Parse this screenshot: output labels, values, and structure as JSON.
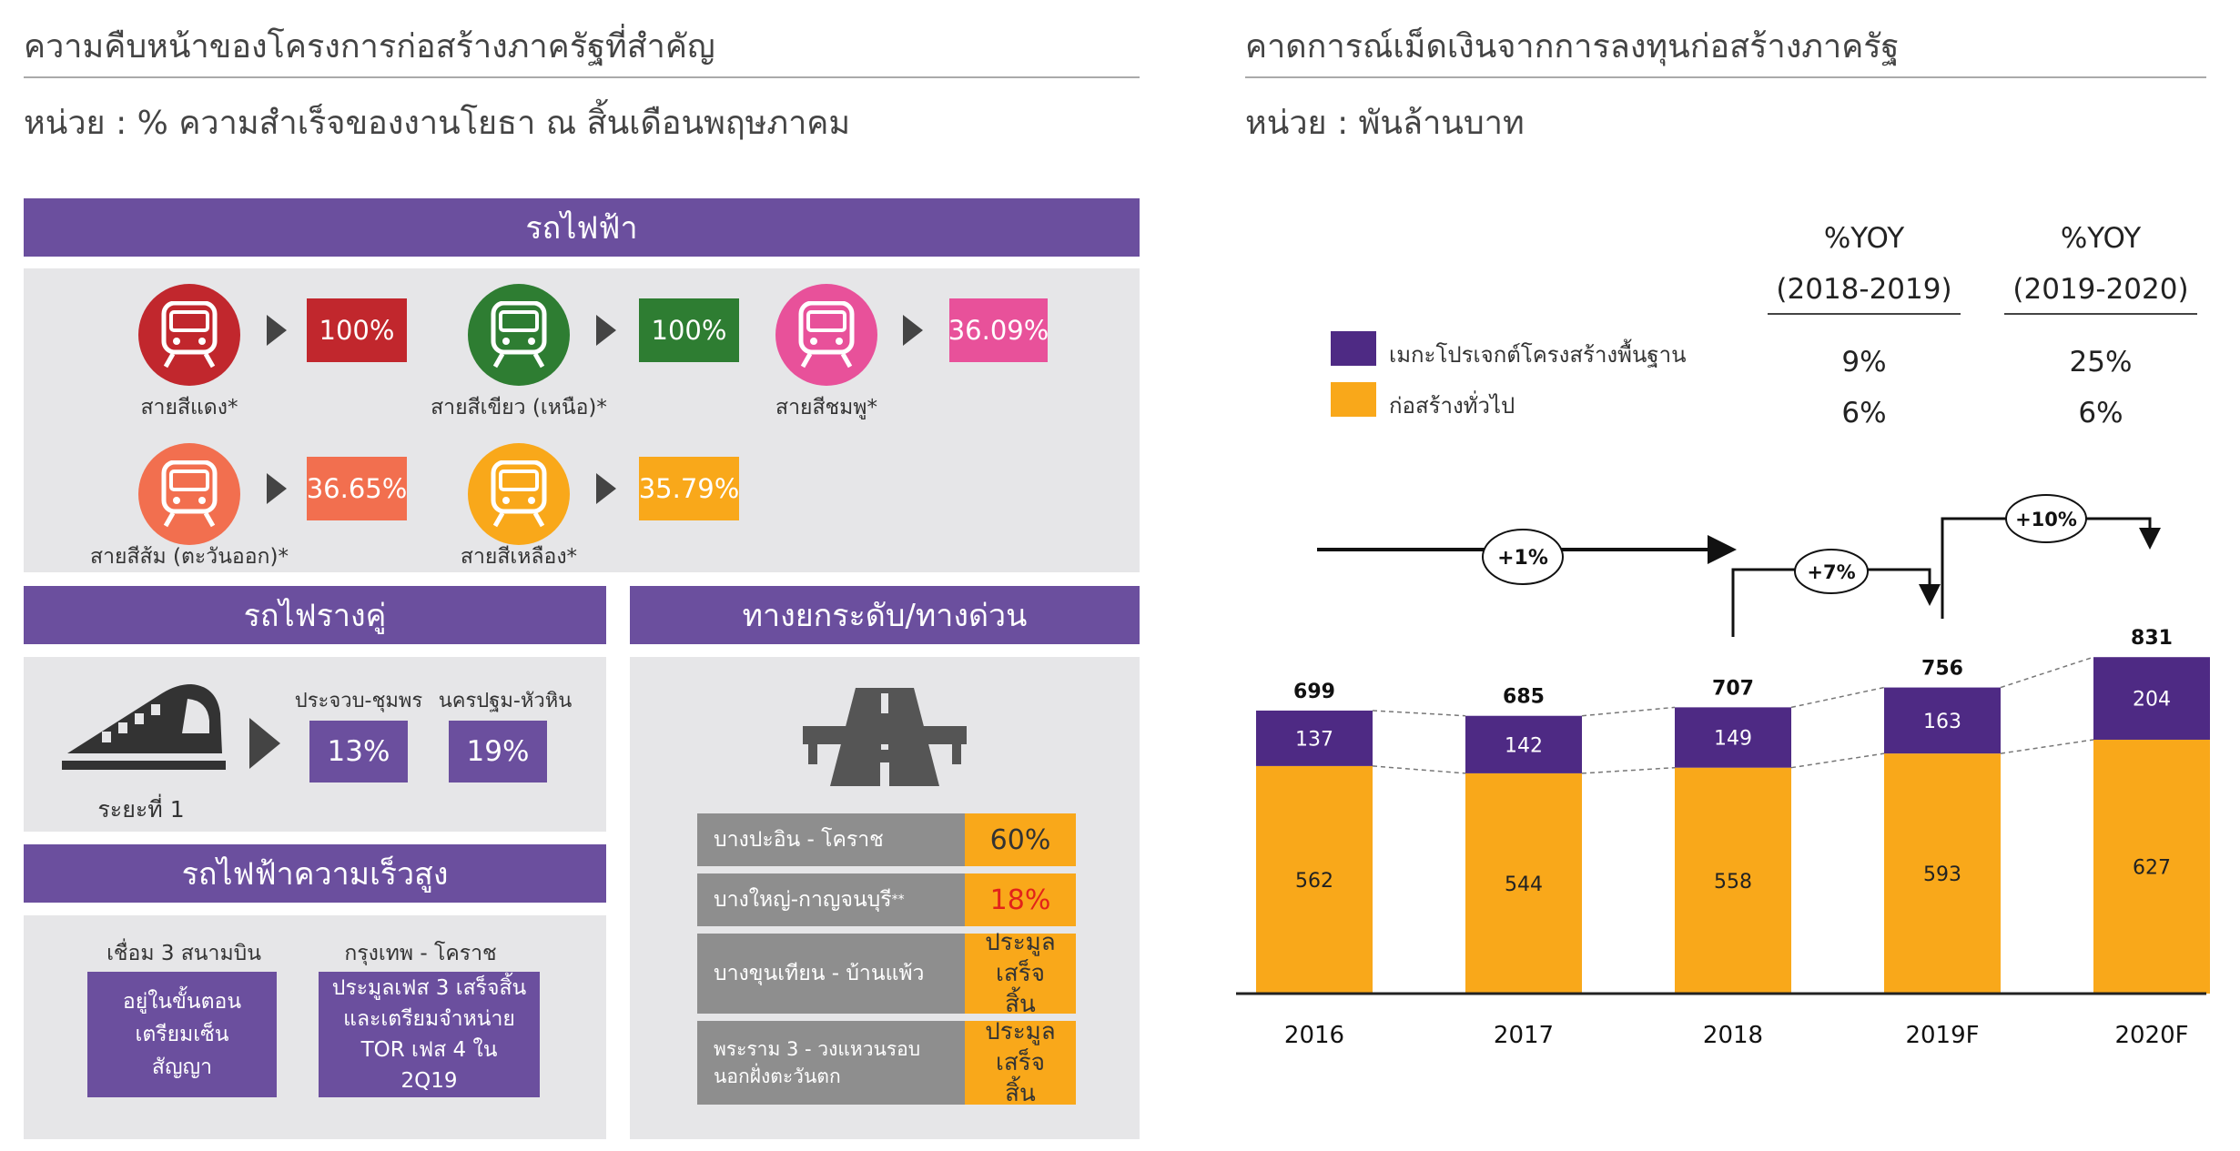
{
  "left": {
    "title": "ความคืบหน้าของโครงการก่อสร้างภาครัฐที่สำคัญ",
    "unit": "หน่วย : % ความสำเร็จของงานโยธา ณ สิ้นเดือนพฤษภาคม",
    "electric_train": {
      "band": "รถไฟฟ้า",
      "lines": [
        {
          "name": "สายสีแดง*",
          "value": "100%",
          "circle_color": "#c1272d",
          "box_color": "#c1272d"
        },
        {
          "name": "สายสีเขียว (เหนือ)*",
          "value": "100%",
          "circle_color": "#2e7d32",
          "box_color": "#2e7d32"
        },
        {
          "name": "สายสีชมพู*",
          "value": "36.09%",
          "circle_color": "#e8519a",
          "box_color": "#e8519a"
        },
        {
          "name": "สายสีส้ม (ตะวันออก)*",
          "value": "36.65%",
          "circle_color": "#f26f4f",
          "box_color": "#f26f4f"
        },
        {
          "name": "สายสีเหลือง*",
          "value": "35.79%",
          "circle_color": "#f9a81a",
          "box_color": "#f9a81a"
        }
      ]
    },
    "double_track": {
      "band": "รถไฟรางคู่",
      "phase": "ระยะที่ 1",
      "routes": [
        {
          "name": "ประจวบ-ชุมพร",
          "value": "13%"
        },
        {
          "name": "นครปฐม-หัวหิน",
          "value": "19%"
        }
      ]
    },
    "high_speed": {
      "band": "รถไฟฟ้าความเร็วสูง",
      "routes": [
        {
          "name": "เชื่อม 3 สนามบิน",
          "status": "อยู่ในขั้นตอนเตรียมเซ็นสัญญา"
        },
        {
          "name": "กรุงเทพ - โคราช",
          "status": "ประมูลเฟส 3 เสร็จสิ้นและเตรียมจำหน่าย TOR เฟส 4 ใน 2Q19"
        }
      ]
    },
    "expressway": {
      "band": "ทางยกระดับ/ทางด่วน",
      "rows": [
        {
          "name": "บางปะอิน - โคราช",
          "value": "60%",
          "value_color": "#222222"
        },
        {
          "name": "บางใหญ่-กาญจนบุรี",
          "name_sup": "**",
          "value": "18%",
          "value_color": "#e2231a"
        },
        {
          "name": "บางขุนเทียน - บ้านแพ้ว",
          "value": "ประมูลเสร็จสิ้น",
          "value_color": "#222222"
        },
        {
          "name": "พระราม 3 - วงแหวนรอบนอกฝั่งตะวันตก",
          "value": "ประมูลเสร็จสิ้น",
          "value_color": "#222222"
        }
      ]
    }
  },
  "right": {
    "title": "คาดการณ์เม็ดเงินจากการลงทุนก่อสร้างภาครัฐ",
    "unit": "หน่วย : พันล้านบาท",
    "yoy_header_1": [
      "%YOY",
      "(2018-2019)"
    ],
    "yoy_header_2": [
      "%YOY",
      "(2019-2020)"
    ],
    "legend": [
      {
        "label": "เมกะโปรเจกต์โครงสร้างพื้นฐาน",
        "color": "#4e2a84",
        "yoy_2018_2019": "9%",
        "yoy_2019_2020": "25%"
      },
      {
        "label": "ก่อสร้างทั่วไป",
        "color": "#f9a81a",
        "yoy_2018_2019": "6%",
        "yoy_2019_2020": "6%"
      }
    ],
    "growth_labels": [
      "+1%",
      "+7%",
      "+10%"
    ]
  },
  "chart_data": {
    "type": "bar",
    "stacked": true,
    "title": "คาดการณ์เม็ดเงินจากการลงทุนก่อสร้างภาครัฐ",
    "ylabel": "หน่วย : พันล้านบาท",
    "categories": [
      "2016",
      "2017",
      "2018",
      "2019F",
      "2020F"
    ],
    "series": [
      {
        "name": "ก่อสร้างทั่วไป",
        "values": [
          562,
          544,
          558,
          593,
          627
        ],
        "color": "#f9a81a"
      },
      {
        "name": "เมกะโปรเจกต์โครงสร้างพื้นฐาน",
        "values": [
          137,
          142,
          149,
          163,
          204
        ],
        "color": "#4e2a84"
      }
    ],
    "totals": [
      699,
      685,
      707,
      756,
      831
    ],
    "ylim": [
      0,
      900
    ],
    "grid": false,
    "legend_position": "top-left"
  }
}
